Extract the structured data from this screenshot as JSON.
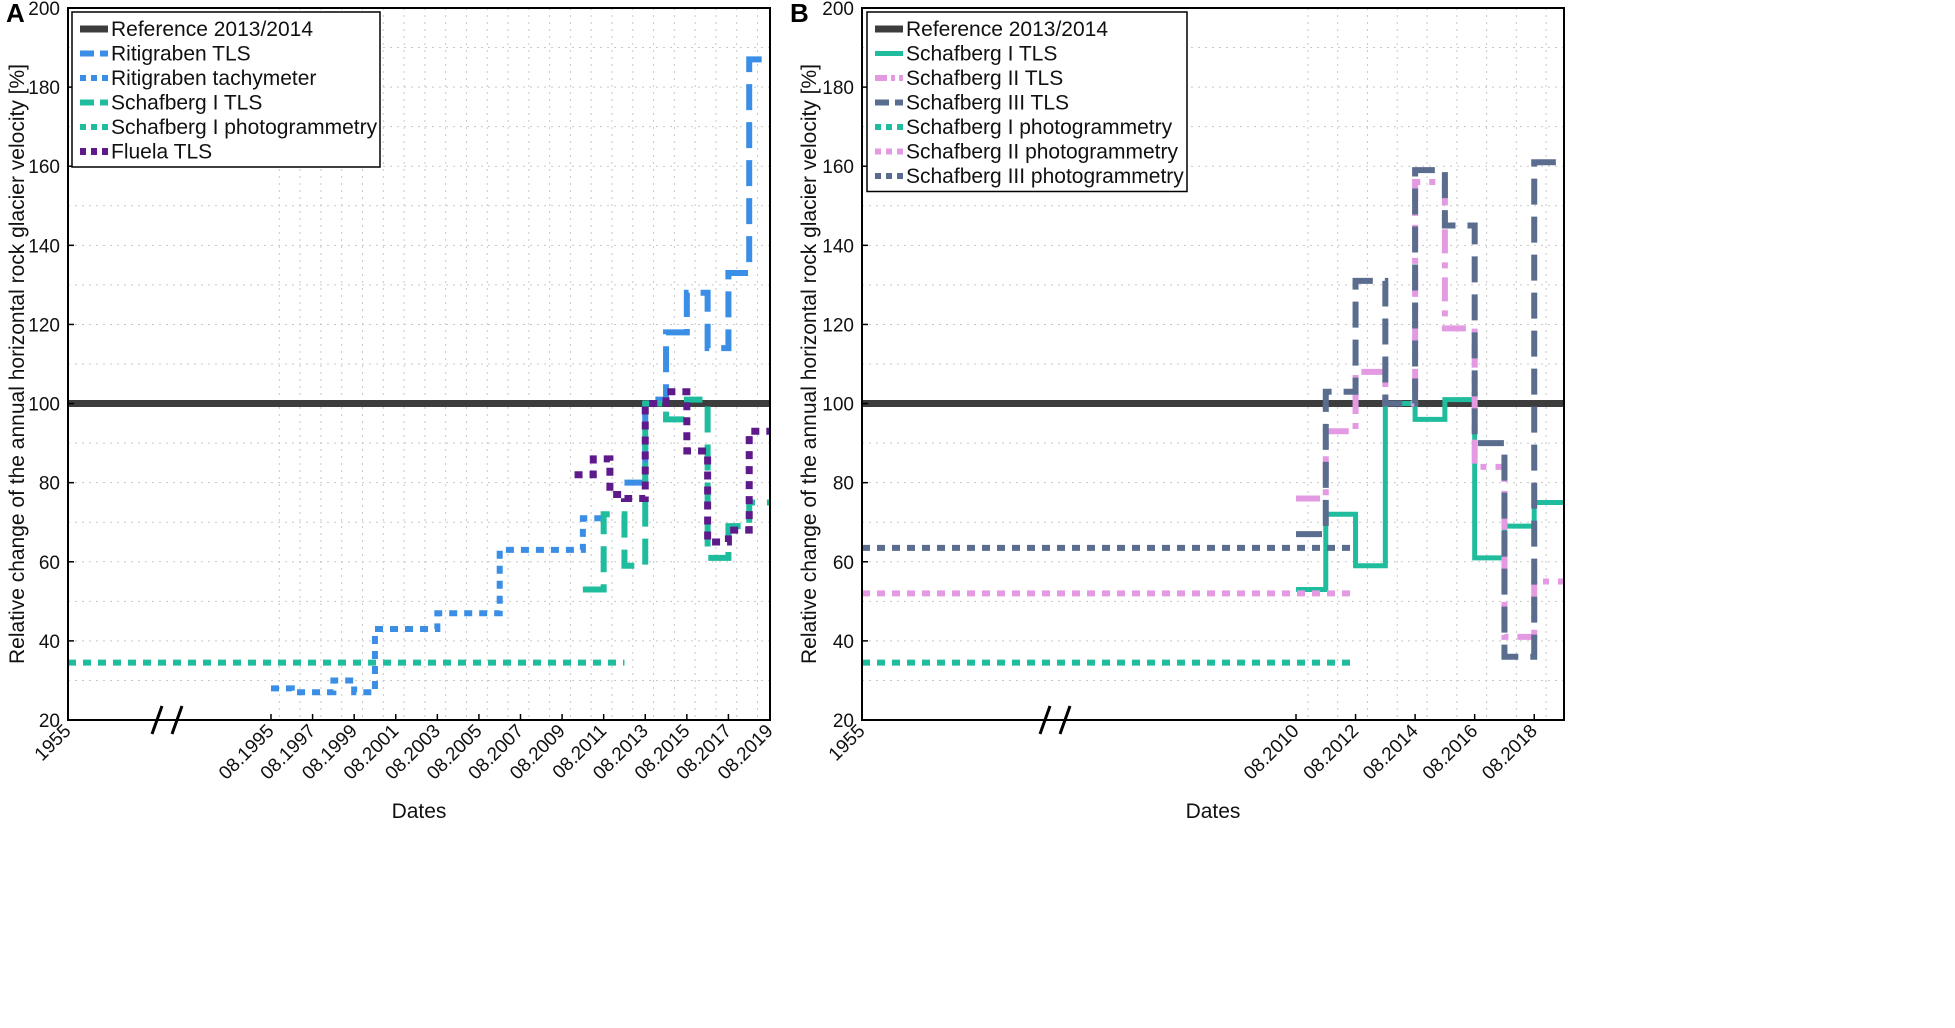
{
  "chart_data": [
    {
      "type": "line",
      "panel": "A",
      "xlabel": "Dates",
      "ylabel": "Relative change of the annual horizontal rock glacier  velocity [%]",
      "ylim": [
        20,
        200
      ],
      "yticks": [
        20,
        40,
        60,
        80,
        100,
        120,
        140,
        160,
        180,
        200
      ],
      "xlim": [
        1955,
        2019.6
      ],
      "axis_break": [
        1960,
        1994
      ],
      "xticks": [
        {
          "x": 1955,
          "label": "1955"
        },
        {
          "x": 1995.6,
          "label": "08.1995"
        },
        {
          "x": 1997.6,
          "label": "08.1997"
        },
        {
          "x": 1999.6,
          "label": "08.1999"
        },
        {
          "x": 2001.6,
          "label": "08.2001"
        },
        {
          "x": 2003.6,
          "label": "08.2003"
        },
        {
          "x": 2005.6,
          "label": "08.2005"
        },
        {
          "x": 2007.6,
          "label": "08.2007"
        },
        {
          "x": 2009.6,
          "label": "08.2009"
        },
        {
          "x": 2011.6,
          "label": "08.2011"
        },
        {
          "x": 2013.6,
          "label": "08.2013"
        },
        {
          "x": 2015.6,
          "label": "08.2015"
        },
        {
          "x": 2017.6,
          "label": "08.2017"
        },
        {
          "x": 2019.6,
          "label": "08.2019"
        }
      ],
      "grid": true,
      "legend_position": "top-left",
      "series": [
        {
          "name": "Reference 2013/2014",
          "color": "#3d3d3d",
          "style": "solid",
          "width": 7,
          "points": [
            [
              1955,
              100
            ],
            [
              2019.6,
              100
            ]
          ]
        },
        {
          "name": "Ritigraben TLS",
          "color": "#3a8ee6",
          "style": "dashed",
          "width": 6,
          "points": [
            [
              2012.6,
              80
            ],
            [
              2013.6,
              80
            ],
            [
              2013.6,
              101
            ],
            [
              2014.6,
              101
            ],
            [
              2014.6,
              118
            ],
            [
              2015.6,
              118
            ],
            [
              2015.6,
              128
            ],
            [
              2016.6,
              128
            ],
            [
              2016.6,
              114
            ],
            [
              2017.6,
              114
            ],
            [
              2017.6,
              133
            ],
            [
              2018.6,
              133
            ],
            [
              2018.6,
              187
            ],
            [
              2019.2,
              187
            ]
          ]
        },
        {
          "name": "Ritigraben tachymeter",
          "color": "#3a8ee6",
          "style": "dotted",
          "width": 6,
          "points": [
            [
              1995.6,
              28
            ],
            [
              1996.6,
              28
            ],
            [
              1996.6,
              27
            ],
            [
              1998.6,
              27
            ],
            [
              1998.6,
              30
            ],
            [
              1999.6,
              30
            ],
            [
              1999.6,
              27
            ],
            [
              2000.6,
              27
            ],
            [
              2000.6,
              43
            ],
            [
              2003.6,
              43
            ],
            [
              2003.6,
              47
            ],
            [
              2006.6,
              47
            ],
            [
              2006.6,
              63
            ],
            [
              2010.6,
              63
            ],
            [
              2010.6,
              71
            ],
            [
              2011.6,
              71
            ]
          ]
        },
        {
          "name": "Schafberg I TLS",
          "color": "#1fbd9d",
          "style": "dashed",
          "width": 6,
          "points": [
            [
              2010.6,
              53
            ],
            [
              2011.6,
              53
            ],
            [
              2011.6,
              72
            ],
            [
              2012.6,
              72
            ],
            [
              2012.6,
              59
            ],
            [
              2013.6,
              59
            ],
            [
              2013.6,
              100
            ],
            [
              2014.6,
              100
            ],
            [
              2014.6,
              96
            ],
            [
              2015.6,
              96
            ],
            [
              2015.6,
              101
            ],
            [
              2016.6,
              101
            ],
            [
              2016.6,
              61
            ],
            [
              2017.6,
              61
            ],
            [
              2017.6,
              69
            ],
            [
              2018.6,
              69
            ],
            [
              2018.6,
              75
            ],
            [
              2019.6,
              75
            ]
          ]
        },
        {
          "name": "Schafberg I photogrammetry",
          "color": "#1fbd9d",
          "style": "dotted",
          "width": 6,
          "points": [
            [
              1955,
              34.5
            ],
            [
              2012.6,
              34.5
            ]
          ]
        },
        {
          "name": "Fluela TLS",
          "color": "#5e1a8a",
          "style": "dotted",
          "width": 7,
          "points": [
            [
              2010.2,
              82
            ],
            [
              2011.1,
              82
            ],
            [
              2011.1,
              86
            ],
            [
              2011.9,
              86
            ],
            [
              2011.9,
              77
            ],
            [
              2012.6,
              77
            ],
            [
              2012.6,
              76
            ],
            [
              2013.6,
              76
            ],
            [
              2013.6,
              100
            ],
            [
              2014.6,
              100
            ],
            [
              2014.6,
              103
            ],
            [
              2015.6,
              103
            ],
            [
              2015.6,
              88
            ],
            [
              2016.6,
              88
            ],
            [
              2016.6,
              65
            ],
            [
              2017.6,
              65
            ],
            [
              2017.6,
              68
            ],
            [
              2018.6,
              68
            ],
            [
              2018.6,
              93
            ],
            [
              2019.6,
              93
            ]
          ]
        }
      ]
    },
    {
      "type": "line",
      "panel": "B",
      "xlabel": "Dates",
      "ylabel": "Relative change of the annual horizontal rock glacier  velocity [%]",
      "ylim": [
        20,
        200
      ],
      "yticks": [
        20,
        40,
        60,
        80,
        100,
        120,
        140,
        160,
        180,
        200
      ],
      "xlim": [
        1955,
        2019.6
      ],
      "axis_break": [
        1960,
        2009
      ],
      "xticks": [
        {
          "x": 1955,
          "label": "1955"
        },
        {
          "x": 2010.6,
          "label": "08.2010"
        },
        {
          "x": 2012.6,
          "label": "08.2012"
        },
        {
          "x": 2014.6,
          "label": "08.2014"
        },
        {
          "x": 2016.6,
          "label": "08.2016"
        },
        {
          "x": 2018.6,
          "label": "08.2018"
        }
      ],
      "grid": true,
      "legend_position": "top-left",
      "series": [
        {
          "name": "Reference 2013/2014",
          "color": "#3d3d3d",
          "style": "solid",
          "width": 7,
          "points": [
            [
              1955,
              100
            ],
            [
              2019.6,
              100
            ]
          ]
        },
        {
          "name": "Schafberg I TLS",
          "color": "#1fbd9d",
          "style": "solid",
          "width": 5,
          "points": [
            [
              2010.6,
              53
            ],
            [
              2011.6,
              53
            ],
            [
              2011.6,
              72
            ],
            [
              2012.6,
              72
            ],
            [
              2012.6,
              59
            ],
            [
              2013.6,
              59
            ],
            [
              2013.6,
              100
            ],
            [
              2014.6,
              100
            ],
            [
              2014.6,
              96
            ],
            [
              2015.6,
              96
            ],
            [
              2015.6,
              101
            ],
            [
              2016.6,
              101
            ],
            [
              2016.6,
              61
            ],
            [
              2017.6,
              61
            ],
            [
              2017.6,
              69
            ],
            [
              2018.6,
              69
            ],
            [
              2018.6,
              75
            ],
            [
              2019.6,
              75
            ]
          ]
        },
        {
          "name": "Schafberg II TLS",
          "color": "#e39ae3",
          "style": "dashdot",
          "width": 6,
          "points": [
            [
              2010.6,
              76
            ],
            [
              2011.6,
              76
            ],
            [
              2011.6,
              93
            ],
            [
              2012.6,
              93
            ],
            [
              2012.6,
              108
            ],
            [
              2013.6,
              108
            ],
            [
              2013.6,
              100
            ],
            [
              2014.6,
              100
            ],
            [
              2014.6,
              156
            ],
            [
              2015.6,
              156
            ],
            [
              2015.6,
              119
            ],
            [
              2016.6,
              119
            ],
            [
              2016.6,
              84
            ],
            [
              2017.6,
              84
            ],
            [
              2017.6,
              41
            ],
            [
              2018.6,
              41
            ],
            [
              2018.6,
              55
            ],
            [
              2019.6,
              55
            ]
          ]
        },
        {
          "name": "Schafberg III TLS",
          "color": "#5a6d8f",
          "style": "dashed",
          "width": 6,
          "points": [
            [
              2010.6,
              67
            ],
            [
              2011.6,
              67
            ],
            [
              2011.6,
              103
            ],
            [
              2012.6,
              103
            ],
            [
              2012.6,
              131
            ],
            [
              2013.6,
              131
            ],
            [
              2013.6,
              100
            ],
            [
              2014.6,
              100
            ],
            [
              2014.6,
              159
            ],
            [
              2015.6,
              159
            ],
            [
              2015.6,
              145
            ],
            [
              2016.6,
              145
            ],
            [
              2016.6,
              90
            ],
            [
              2017.6,
              90
            ],
            [
              2017.6,
              36
            ],
            [
              2018.6,
              36
            ],
            [
              2018.6,
              161
            ],
            [
              2019.6,
              161
            ]
          ]
        },
        {
          "name": "Schafberg I photogrammetry",
          "color": "#1fbd9d",
          "style": "dotted",
          "width": 6,
          "points": [
            [
              1955,
              34.5
            ],
            [
              2012.6,
              34.5
            ]
          ]
        },
        {
          "name": "Schafberg II photogrammetry",
          "color": "#e39ae3",
          "style": "dotted",
          "width": 6,
          "points": [
            [
              1955,
              52
            ],
            [
              2012.6,
              52
            ]
          ]
        },
        {
          "name": "Schafberg III photogrammetry",
          "color": "#5a6d8f",
          "style": "dotted",
          "width": 6,
          "points": [
            [
              1955,
              63.5
            ],
            [
              2012.6,
              63.5
            ]
          ]
        }
      ]
    }
  ]
}
